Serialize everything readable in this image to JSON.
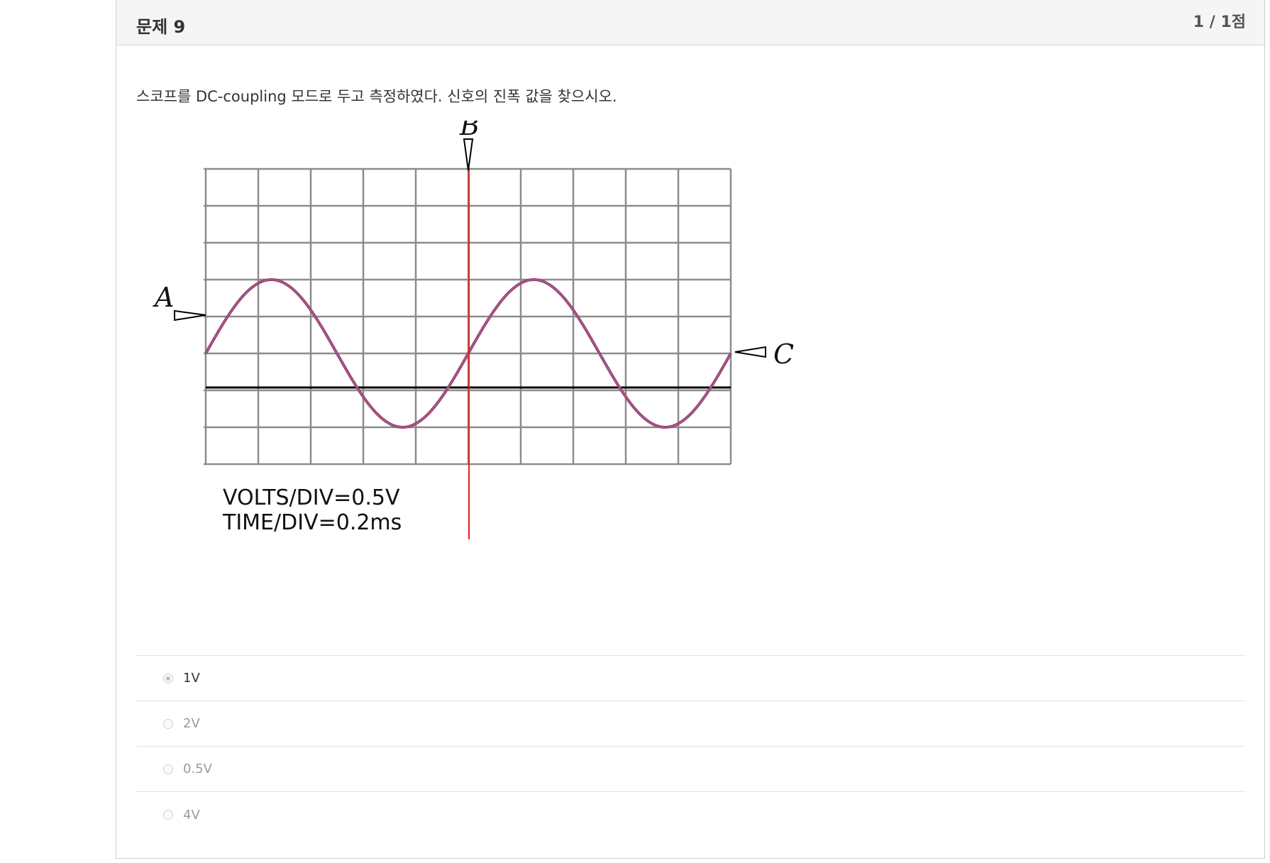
{
  "question": {
    "title": "문제 9",
    "score": "1 / 1점",
    "text": "스코프를 DC-coupling 모드로 두고 측정하였다. 신호의 진폭 값을 찾으시오."
  },
  "figure": {
    "markers": {
      "a": "A",
      "b": "B",
      "c": "C"
    },
    "volts_div": "VOLTS/DIV=0.5V",
    "time_div": "TIME/DIV=0.2ms",
    "colors": {
      "grid": "#8c8c8c",
      "trace": "#b0365a",
      "trace_overlay": "#7b6fb0",
      "cursor": "#e02020",
      "ground": "#000000"
    },
    "signal": {
      "amplitude_div": 2,
      "center_offset_div": -1,
      "period_div": 5
    }
  },
  "options": [
    {
      "label": "1V",
      "selected": true
    },
    {
      "label": "2V",
      "selected": false
    },
    {
      "label": "0.5V",
      "selected": false
    },
    {
      "label": "4V",
      "selected": false
    }
  ]
}
